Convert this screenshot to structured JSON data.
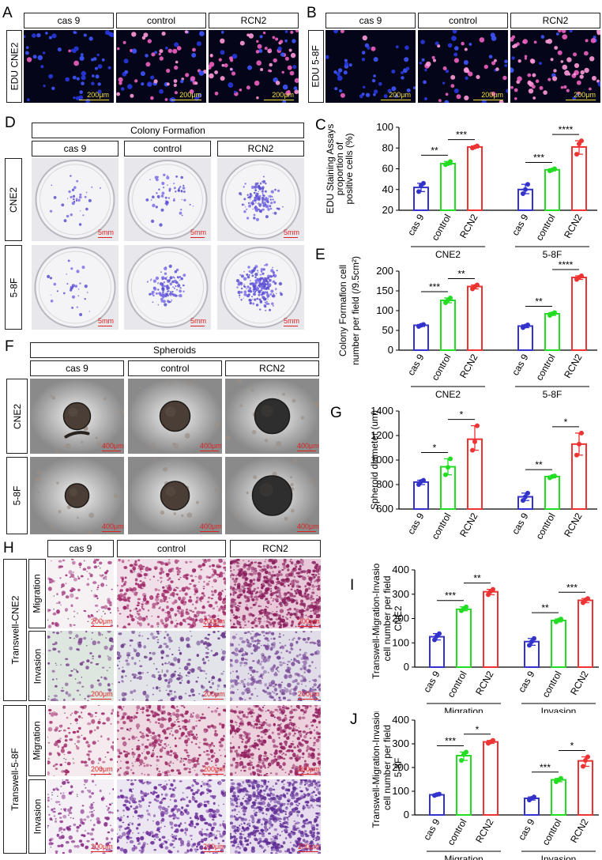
{
  "panels": {
    "A": "A",
    "B": "B",
    "C": "C",
    "D": "D",
    "E": "E",
    "F": "F",
    "G": "G",
    "H": "H",
    "I": "I",
    "J": "J"
  },
  "groups": [
    "cas 9",
    "control",
    "RCN2"
  ],
  "colors": {
    "cas9": "#3333cc",
    "control": "#22dd22",
    "RCN2": "#ee3333"
  },
  "panelA": {
    "row_label": "EDU CNE2",
    "scale": "200μm"
  },
  "panelB": {
    "row_label": "EDU 5-8F",
    "scale": "200μm"
  },
  "panelD": {
    "title": "Colony Formafion",
    "rows": [
      "CNE2",
      "5-8F"
    ],
    "scale": "5mm"
  },
  "panelF": {
    "title": "Spheroids",
    "rows": [
      "CNE2",
      "5-8F"
    ],
    "scale": "400μm"
  },
  "panelH": {
    "blocks": [
      "Transwell-CNE2",
      "Transwell-5-8F"
    ],
    "rows": [
      "Migration",
      "Invasion"
    ],
    "scale": "200μm"
  },
  "chart_data": [
    {
      "id": "C",
      "type": "bar",
      "ylabel": [
        "EDU Staining Assays",
        "proportion of",
        "positive cells (%)"
      ],
      "ylim": [
        20,
        100
      ],
      "yticks": [
        20,
        40,
        60,
        80,
        100
      ],
      "categories": [
        "cas 9",
        "control",
        "RCN2"
      ],
      "groups": [
        "CNE2",
        "5-8F"
      ],
      "series": [
        {
          "group": "CNE2",
          "values": [
            42,
            65,
            81
          ],
          "points": [
            [
              38,
              44,
              46
            ],
            [
              64,
              65,
              67
            ],
            [
              80,
              81,
              82
            ]
          ],
          "sig": [
            {
              "a": 0,
              "b": 1,
              "label": "**"
            },
            {
              "a": 1,
              "b": 2,
              "label": "***"
            }
          ]
        },
        {
          "group": "5-8F",
          "values": [
            40,
            59,
            81
          ],
          "points": [
            [
              36,
              40,
              45
            ],
            [
              58,
              59,
              60
            ],
            [
              74,
              84,
              87
            ]
          ],
          "sig": [
            {
              "a": 0,
              "b": 1,
              "label": "***"
            },
            {
              "a": 1,
              "b": 2,
              "label": "****"
            }
          ]
        }
      ]
    },
    {
      "id": "E",
      "type": "bar",
      "ylabel": [
        "Colony Formafion cell",
        "number per field (/9.5cm²)"
      ],
      "ylim": [
        0,
        200
      ],
      "yticks": [
        0,
        50,
        100,
        150,
        200
      ],
      "categories": [
        "cas 9",
        "control",
        "RCN2"
      ],
      "groups": [
        "CNE2",
        "5-8F"
      ],
      "series": [
        {
          "group": "CNE2",
          "values": [
            63,
            126,
            161
          ],
          "points": [
            [
              60,
              63,
              65
            ],
            [
              120,
              127,
              132
            ],
            [
              155,
              161,
              165
            ]
          ],
          "sig": [
            {
              "a": 0,
              "b": 1,
              "label": "***"
            },
            {
              "a": 1,
              "b": 2,
              "label": "**"
            }
          ]
        },
        {
          "group": "5-8F",
          "values": [
            61,
            92,
            184
          ],
          "points": [
            [
              57,
              61,
              64
            ],
            [
              88,
              92,
              95
            ],
            [
              179,
              184,
              188
            ]
          ],
          "sig": [
            {
              "a": 0,
              "b": 1,
              "label": "**"
            },
            {
              "a": 1,
              "b": 2,
              "label": "****"
            }
          ]
        }
      ]
    },
    {
      "id": "G",
      "type": "bar",
      "ylabel": [
        "Spheroid diameter (um)"
      ],
      "ylim": [
        600,
        1400
      ],
      "yticks": [
        600,
        800,
        1000,
        1200,
        1400
      ],
      "categories": [
        "cas 9",
        "control",
        "RCN2"
      ],
      "groups": [
        "CNE2",
        "5-8F"
      ],
      "series": [
        {
          "group": "CNE2",
          "values": [
            820,
            945,
            1170
          ],
          "points": [
            [
              800,
              825,
              835
            ],
            [
              880,
              940,
              1010
            ],
            [
              1080,
              1150,
              1280
            ]
          ],
          "sig": [
            {
              "a": 0,
              "b": 1,
              "label": "*"
            },
            {
              "a": 1,
              "b": 2,
              "label": "*"
            }
          ]
        },
        {
          "group": "5-8F",
          "values": [
            700,
            865,
            1130
          ],
          "points": [
            [
              670,
              700,
              730
            ],
            [
              855,
              865,
              870
            ],
            [
              1040,
              1130,
              1220
            ]
          ],
          "sig": [
            {
              "a": 0,
              "b": 1,
              "label": "**"
            },
            {
              "a": 1,
              "b": 2,
              "label": "*"
            }
          ]
        }
      ]
    },
    {
      "id": "I",
      "type": "bar",
      "ylabel": [
        "Transwell-Migration-Invasion",
        "cell number per field",
        "CNE2"
      ],
      "ylim": [
        0,
        400
      ],
      "yticks": [
        0,
        100,
        200,
        300,
        400
      ],
      "categories": [
        "cas 9",
        "control",
        "RCN2"
      ],
      "groups": [
        "Migration",
        "Invasion"
      ],
      "series": [
        {
          "group": "Migration",
          "values": [
            125,
            238,
            310
          ],
          "points": [
            [
              112,
              128,
              138
            ],
            [
              232,
              240,
              248
            ],
            [
              298,
              312,
              320
            ]
          ],
          "sig": [
            {
              "a": 0,
              "b": 1,
              "label": "***"
            },
            {
              "a": 1,
              "b": 2,
              "label": "**"
            }
          ]
        },
        {
          "group": "Invasion",
          "values": [
            105,
            192,
            275
          ],
          "points": [
            [
              90,
              105,
              118
            ],
            [
              186,
              193,
              198
            ],
            [
              265,
              276,
              282
            ]
          ],
          "sig": [
            {
              "a": 0,
              "b": 1,
              "label": "**"
            },
            {
              "a": 1,
              "b": 2,
              "label": "***"
            }
          ]
        }
      ]
    },
    {
      "id": "J",
      "type": "bar",
      "ylabel": [
        "Transwell-Migration-Invasion",
        "cell number per field",
        "5-8F"
      ],
      "ylim": [
        0,
        400
      ],
      "yticks": [
        0,
        100,
        200,
        300,
        400
      ],
      "categories": [
        "cas 9",
        "control",
        "RCN2"
      ],
      "groups": [
        "Migration",
        "Invasion"
      ],
      "series": [
        {
          "group": "Migration",
          "values": [
            85,
            250,
            308
          ],
          "points": [
            [
              82,
              86,
              88
            ],
            [
              230,
              255,
              265
            ],
            [
              302,
              308,
              314
            ]
          ],
          "sig": [
            {
              "a": 0,
              "b": 1,
              "label": "***"
            },
            {
              "a": 1,
              "b": 2,
              "label": "*"
            }
          ]
        },
        {
          "group": "Invasion",
          "values": [
            70,
            148,
            228
          ],
          "points": [
            [
              63,
              70,
              76
            ],
            [
              140,
              148,
              154
            ],
            [
              205,
              230,
              245
            ]
          ],
          "sig": [
            {
              "a": 0,
              "b": 1,
              "label": "***"
            },
            {
              "a": 1,
              "b": 2,
              "label": "*"
            }
          ]
        }
      ]
    }
  ]
}
